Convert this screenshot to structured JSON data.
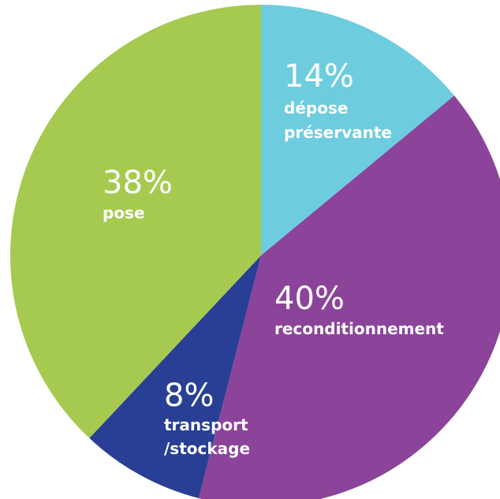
{
  "chart_data": {
    "type": "pie",
    "slices": [
      {
        "label_lines": [
          "dépose",
          "préservante"
        ],
        "percent_text": "14%",
        "value": 14,
        "color": "#6dcddf"
      },
      {
        "label_lines": [
          "reconditionnement"
        ],
        "percent_text": "40%",
        "value": 40,
        "color": "#8b4499"
      },
      {
        "label_lines": [
          "transport",
          "/stockage"
        ],
        "percent_text": "8%",
        "value": 8,
        "color": "#283f95"
      },
      {
        "label_lines": [
          "pose"
        ],
        "percent_text": "38%",
        "value": 38,
        "color": "#a6ca4f"
      }
    ],
    "start_angle_deg": 0,
    "direction": "clockwise"
  }
}
